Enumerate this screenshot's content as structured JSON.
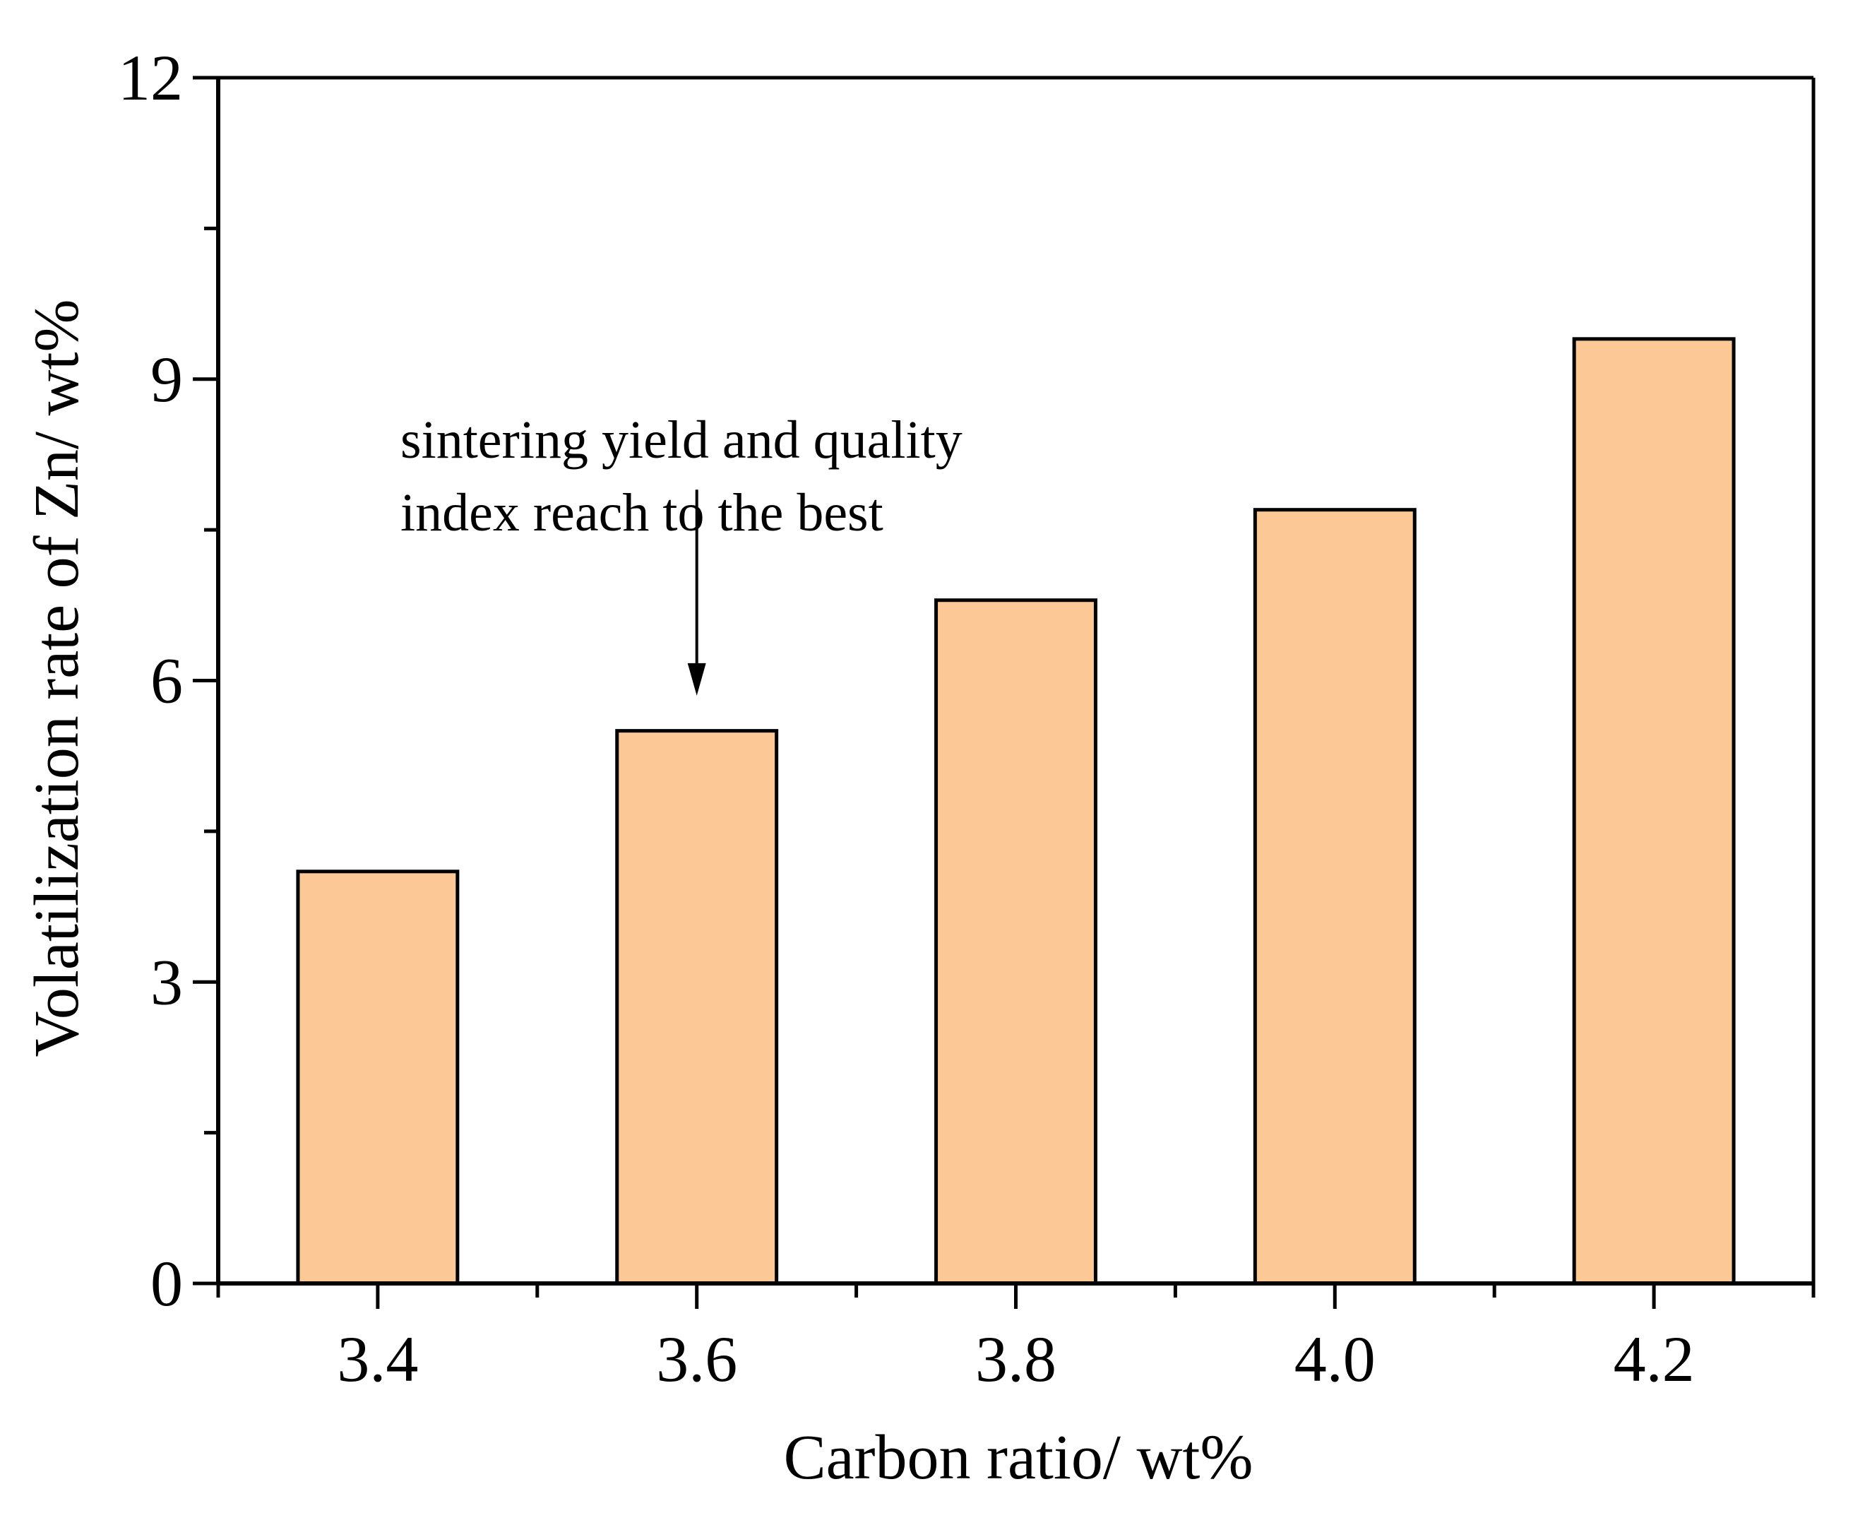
{
  "chart_data": {
    "type": "bar",
    "title": "",
    "xlabel": "Carbon ratio/ wt%",
    "ylabel": "Volatilization rate of Zn/ wt%",
    "categories": [
      "3.4",
      "3.6",
      "3.8",
      "4.0",
      "4.2"
    ],
    "x": [
      3.4,
      3.6,
      3.8,
      4.0,
      4.2
    ],
    "values": [
      4.1,
      5.5,
      6.8,
      7.7,
      9.4
    ],
    "xlim": [
      3.3,
      4.3
    ],
    "ylim": [
      0,
      12
    ],
    "yticks": [
      "0",
      "3",
      "6",
      "9",
      "12"
    ],
    "ytick_values": [
      0,
      3,
      6,
      9,
      12
    ],
    "y_minor_step": 1.5,
    "x_minor_step": 0.1,
    "bar_width": 0.1,
    "grid": false,
    "legend": "none",
    "colors": {
      "bar_fill": "#fbc896",
      "bar_edge": "#000000",
      "axis": "#000000"
    },
    "annotation": {
      "lines": [
        "sintering yield and quality",
        "index reach to the best"
      ],
      "target_x": 3.6,
      "target_y": 5.85,
      "arrow_from_y": 7.9
    }
  }
}
